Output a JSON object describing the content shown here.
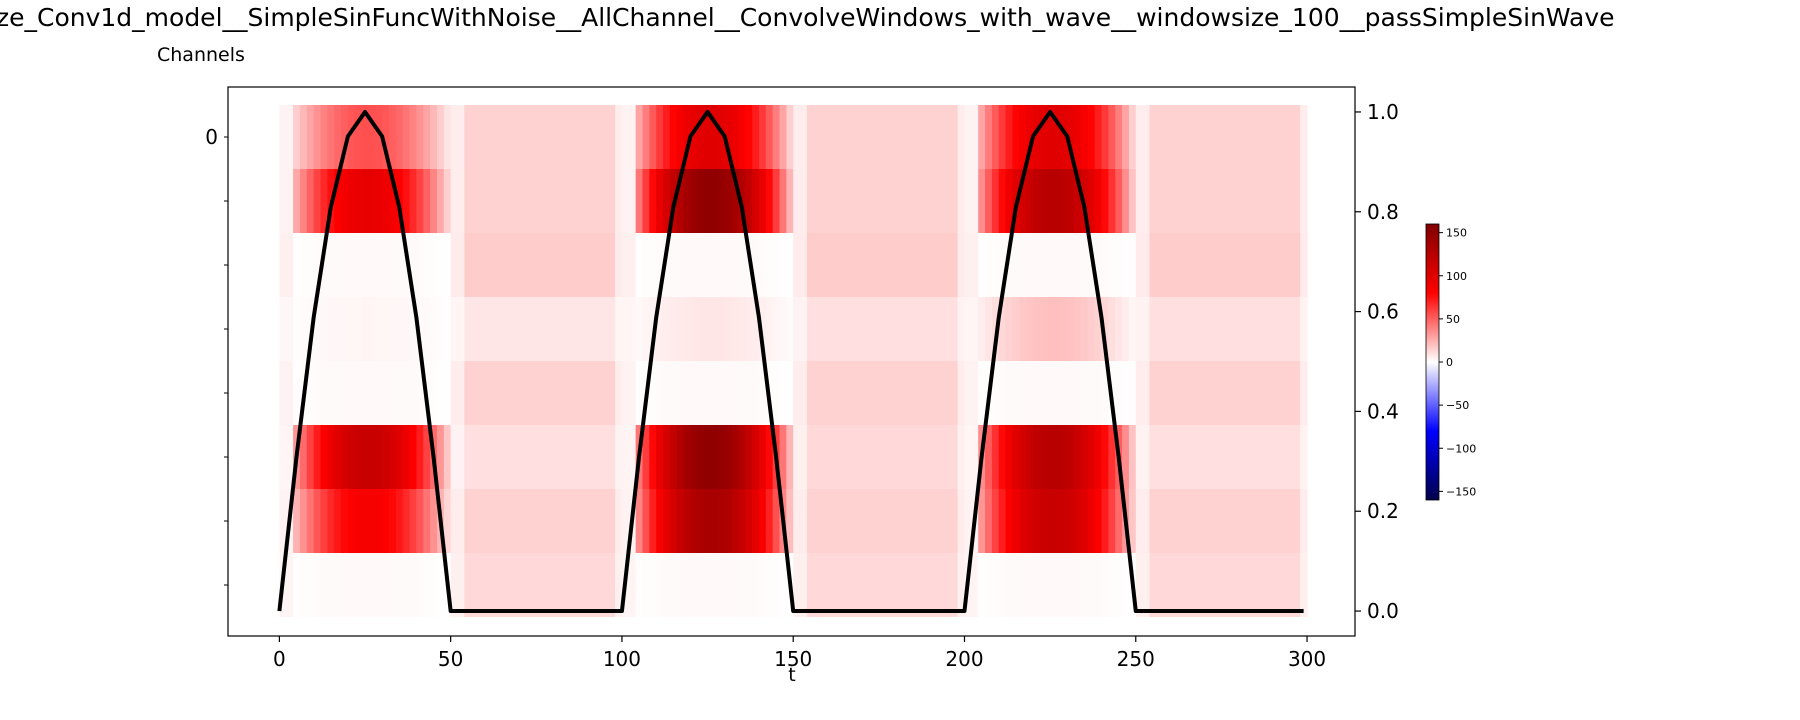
{
  "chart_data": {
    "type": "heatmap",
    "title": "ze_Conv1d_model__SimpleSinFuncWithNoise__AllChannel__ConvolveWindows_with_wave__windowsize_100__passSimpleSinWave",
    "xlabel": "t",
    "ylabel": "Channels",
    "x_range": [
      0,
      299
    ],
    "xlim": [
      -15,
      314
    ],
    "x_ticks": [
      "0",
      "50",
      "100",
      "150",
      "200",
      "250",
      "300"
    ],
    "channels": 8,
    "left_y_ticks": [
      "0"
    ],
    "right_ylim": [
      -0.05,
      1.05
    ],
    "right_y_ticks": [
      "0.0",
      "0.2",
      "0.4",
      "0.6",
      "0.8",
      "1.0"
    ],
    "colormap": "seismic",
    "colorbar": {
      "range": [
        -160,
        160
      ],
      "ticks": [
        "150",
        "100",
        "50",
        "0",
        "−50",
        "−100",
        "−150"
      ]
    },
    "grid": false,
    "heat_rows": [
      {
        "peak": [
          55,
          100,
          100
        ],
        "mid": [
          14,
          14,
          14
        ]
      },
      {
        "peak": [
          95,
          150,
          125
        ],
        "mid": [
          14,
          14,
          14
        ]
      },
      {
        "peak": [
          2,
          2,
          2
        ],
        "mid": [
          16,
          16,
          16
        ]
      },
      {
        "peak": [
          3,
          8,
          20
        ],
        "mid": [
          8,
          10,
          10
        ]
      },
      {
        "peak": [
          2,
          2,
          2
        ],
        "mid": [
          14,
          14,
          14
        ]
      },
      {
        "peak": [
          115,
          150,
          125
        ],
        "mid": [
          10,
          12,
          10
        ]
      },
      {
        "peak": [
          85,
          135,
          115
        ],
        "mid": [
          14,
          14,
          14
        ]
      },
      {
        "peak": [
          2,
          2,
          2
        ],
        "mid": [
          12,
          12,
          12
        ]
      }
    ],
    "series": [
      {
        "type": "line",
        "color": "#000000",
        "x": [
          0,
          5,
          10,
          15,
          20,
          25,
          30,
          35,
          40,
          45,
          50,
          100,
          105,
          110,
          115,
          120,
          125,
          130,
          135,
          140,
          145,
          150,
          200,
          205,
          210,
          215,
          220,
          225,
          230,
          235,
          240,
          245,
          250,
          299
        ],
        "y": [
          0,
          0.309,
          0.588,
          0.809,
          0.951,
          1.0,
          0.951,
          0.809,
          0.588,
          0.309,
          0,
          0,
          0.309,
          0.588,
          0.809,
          0.951,
          1.0,
          0.951,
          0.809,
          0.588,
          0.309,
          0,
          0,
          0.309,
          0.588,
          0.809,
          0.951,
          1.0,
          0.951,
          0.809,
          0.588,
          0.309,
          0,
          0
        ]
      }
    ]
  }
}
